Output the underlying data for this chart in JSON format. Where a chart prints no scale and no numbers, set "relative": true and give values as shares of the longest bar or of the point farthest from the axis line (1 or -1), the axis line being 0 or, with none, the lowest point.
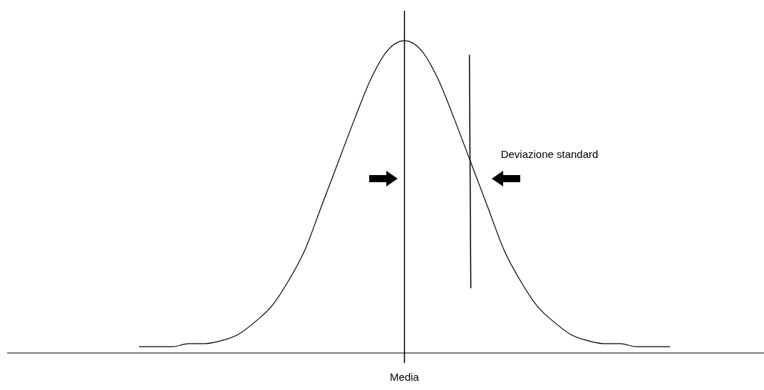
{
  "chart_data": {
    "type": "line",
    "relative": true,
    "categories": [
      null,
      null,
      null,
      null,
      null,
      null,
      null,
      null,
      null,
      null,
      null,
      null,
      null,
      null,
      null,
      null,
      null,
      null,
      null,
      null,
      null,
      null,
      null,
      null,
      null,
      null,
      null,
      null,
      null,
      null,
      null,
      null,
      null
    ],
    "series": [
      {
        "color": "#000000",
        "values": [
          0.02,
          0.02,
          0.02,
          0.03,
          0.03,
          0.04,
          0.06,
          0.1,
          0.15,
          0.23,
          0.33,
          0.47,
          0.61,
          0.75,
          0.88,
          0.97,
          1,
          0.97,
          0.88,
          0.75,
          0.61,
          0.47,
          0.33,
          0.23,
          0.15,
          0.1,
          0.06,
          0.04,
          0.03,
          0.03,
          0.02,
          0.02,
          0.02
        ]
      }
    ],
    "annotations": [
      "Media",
      "Deviazione standard"
    ],
    "grid": false,
    "legend": false,
    "marker": "none",
    "line_style": "solid"
  }
}
